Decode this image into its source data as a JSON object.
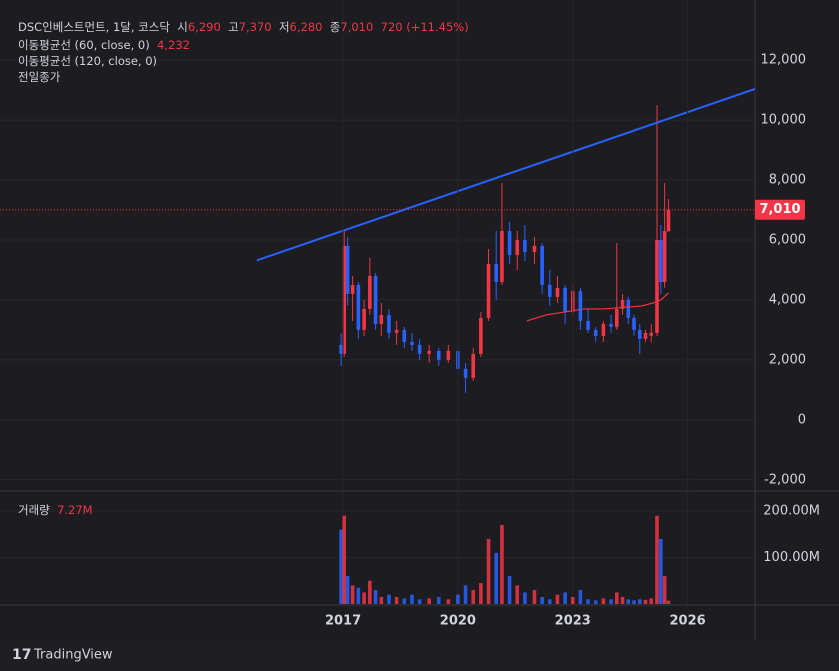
{
  "chart_data": {
    "type": "candlestick",
    "header": {
      "title": "DSC인베스트먼트, 1달, 코스닥",
      "open_label": "시",
      "open": "6,290",
      "high_label": "고",
      "high": "7,370",
      "low_label": "저",
      "low": "6,280",
      "close_label": "종",
      "close": "7,010",
      "change": "720 (+11.45%)"
    },
    "indicators": {
      "ma60": "이동평균선 (60, close, 0)",
      "ma60_value": "4,232",
      "ma120": "이동평균선 (120, close, 0)",
      "prev_close": "전일종가"
    },
    "up_color": "#f23645",
    "down_color": "#2962ff",
    "x": [
      2016.95,
      2017.03,
      2017.12,
      2017.25,
      2017.4,
      2017.55,
      2017.7,
      2017.85,
      2018.0,
      2018.2,
      2018.4,
      2018.6,
      2018.8,
      2019.0,
      2019.25,
      2019.5,
      2019.75,
      2020.0,
      2020.2,
      2020.4,
      2020.6,
      2020.8,
      2021.0,
      2021.15,
      2021.35,
      2021.55,
      2021.75,
      2022.0,
      2022.2,
      2022.4,
      2022.6,
      2022.8,
      2023.0,
      2023.2,
      2023.4,
      2023.6,
      2023.8,
      2024.0,
      2024.15,
      2024.3,
      2024.45,
      2024.6,
      2024.75,
      2024.9,
      2025.05,
      2025.2,
      2025.3,
      2025.4,
      2025.5
    ],
    "open": [
      2500,
      2200,
      5800,
      4200,
      4500,
      3000,
      3700,
      4800,
      3200,
      3500,
      2900,
      3000,
      2600,
      2500,
      2200,
      2300,
      2000,
      2300,
      1700,
      1400,
      2200,
      3400,
      5200,
      4600,
      6300,
      5500,
      6000,
      5600,
      5800,
      4500,
      4100,
      4400,
      3600,
      4300,
      3300,
      3000,
      2800,
      3200,
      3100,
      3700,
      4000,
      3400,
      3000,
      2700,
      2800,
      2900,
      6000,
      4600,
      6290
    ],
    "high": [
      2900,
      6300,
      6100,
      4800,
      4600,
      4000,
      5400,
      4900,
      3900,
      3700,
      3300,
      3100,
      2900,
      2700,
      2500,
      2400,
      2500,
      2400,
      1900,
      2400,
      3600,
      5700,
      6300,
      7900,
      6600,
      6300,
      6500,
      6100,
      5900,
      5000,
      4800,
      4500,
      4500,
      4400,
      3700,
      3100,
      3300,
      3500,
      5900,
      4200,
      4100,
      3500,
      3200,
      3000,
      3200,
      10500,
      6500,
      7900,
      7370
    ],
    "low": [
      1800,
      2100,
      3800,
      3300,
      2700,
      2800,
      3500,
      3000,
      2800,
      2700,
      2500,
      2400,
      2300,
      2000,
      1900,
      1800,
      1900,
      1500,
      900,
      1300,
      2100,
      3300,
      4000,
      4500,
      5200,
      5000,
      5300,
      5200,
      4200,
      3800,
      3900,
      3200,
      3500,
      3000,
      2900,
      2600,
      2600,
      2900,
      3000,
      3500,
      3200,
      2800,
      2200,
      2600,
      2600,
      2800,
      4200,
      4400,
      6280
    ],
    "close": [
      2200,
      5800,
      4200,
      4500,
      3000,
      3700,
      4800,
      3200,
      3500,
      2900,
      3000,
      2600,
      2500,
      2200,
      2300,
      2000,
      2300,
      1700,
      1400,
      2200,
      3400,
      5200,
      4600,
      6300,
      5500,
      6000,
      5600,
      5800,
      4500,
      4100,
      4400,
      3600,
      4300,
      3300,
      3000,
      2800,
      3200,
      3100,
      3700,
      4000,
      3400,
      3000,
      2700,
      2900,
      2900,
      6000,
      4600,
      6300,
      7010
    ],
    "xlim": [
      2008.04,
      2027.76
    ],
    "xticks": [
      2017,
      2020,
      2023,
      2026
    ],
    "ylim": [
      -2375,
      14007
    ],
    "yticks": [
      {
        "value": -2000,
        "label": "-2,000"
      },
      0,
      {
        "value": 2000,
        "label": "2,000"
      },
      {
        "value": 4000,
        "label": "4,000"
      },
      {
        "value": 6000,
        "label": "6,000"
      },
      {
        "value": 8000,
        "label": "8,000"
      },
      {
        "value": 10000,
        "label": "10,000"
      },
      {
        "value": 12000,
        "label": "12,000"
      }
    ],
    "last_price": {
      "value": 7010,
      "label": "7,010"
    },
    "trendline": {
      "color": "#2962ff",
      "x": [
        2014.75,
        2027.76
      ],
      "values": [
        5320,
        11040
      ]
    },
    "ma": {
      "color": "#f23645",
      "x": [
        2021.8,
        2022.3,
        2022.8,
        2023.3,
        2023.8,
        2024.3,
        2024.8,
        2025.1,
        2025.3,
        2025.5
      ],
      "values": [
        3300,
        3500,
        3600,
        3700,
        3700,
        3750,
        3800,
        3900,
        4000,
        4232
      ]
    },
    "volume": {
      "name": "거래량",
      "last": "7.27M",
      "ylim": [
        0,
        241000000
      ],
      "yticks": [
        {
          "value": 100000000,
          "label": "100.00M"
        },
        {
          "value": 200000000,
          "label": "200.00M"
        }
      ],
      "values": [
        160000000,
        190000000,
        60000000,
        40000000,
        35000000,
        25000000,
        50000000,
        30000000,
        15000000,
        20000000,
        15000000,
        12000000,
        20000000,
        10000000,
        12000000,
        15000000,
        10000000,
        20000000,
        40000000,
        30000000,
        45000000,
        140000000,
        110000000,
        170000000,
        60000000,
        40000000,
        25000000,
        30000000,
        15000000,
        10000000,
        20000000,
        25000000,
        15000000,
        30000000,
        10000000,
        8000000,
        12000000,
        10000000,
        25000000,
        15000000,
        10000000,
        8000000,
        10000000,
        9000000,
        12000000,
        190000000,
        140000000,
        60000000,
        7270000
      ]
    },
    "footer": "TradingView"
  }
}
